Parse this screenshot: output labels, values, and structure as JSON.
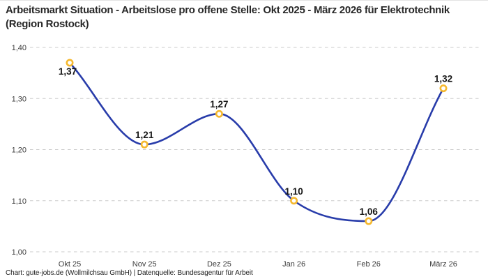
{
  "header": {
    "title": "Arbeitsmarkt Situation - Arbeitslose pro offene Stelle: Okt 2025 - März 2026 für Elektrotechnik (Region Rostock)"
  },
  "chart_data": {
    "type": "line",
    "title": "Arbeitsmarkt Situation - Arbeitslose pro offene Stelle: Okt 2025 - März 2026 für Elektrotechnik (Region Rostock)",
    "categories": [
      "Okt 25",
      "Nov 25",
      "Dez 25",
      "Jan 26",
      "Feb 26",
      "März 26"
    ],
    "values": [
      1.37,
      1.21,
      1.27,
      1.1,
      1.06,
      1.32
    ],
    "data_labels": [
      "1,37",
      "1,21",
      "1,27",
      "1,10",
      "1,06",
      "1,32"
    ],
    "xlabel": "",
    "ylabel": "",
    "ylim": [
      1.0,
      1.4
    ],
    "yticks": [
      1.0,
      1.1,
      1.2,
      1.3,
      1.4
    ],
    "ytick_labels": [
      "1,00",
      "1,10",
      "1,20",
      "1,30",
      "1,40"
    ],
    "grid": "horizontal-dashed",
    "legend_position": "none",
    "interpolation": "monotone",
    "line_color": "#283caa",
    "marker_ring_color": "#f5b82e",
    "marker_fill_color": "#ffffff",
    "grid_color": "#cbcbcb"
  },
  "footer": {
    "credit": "Chart: gute-jobs.de (Wollmilchsau GmbH) | Datenquelle: Bundesagentur für Arbeit"
  }
}
